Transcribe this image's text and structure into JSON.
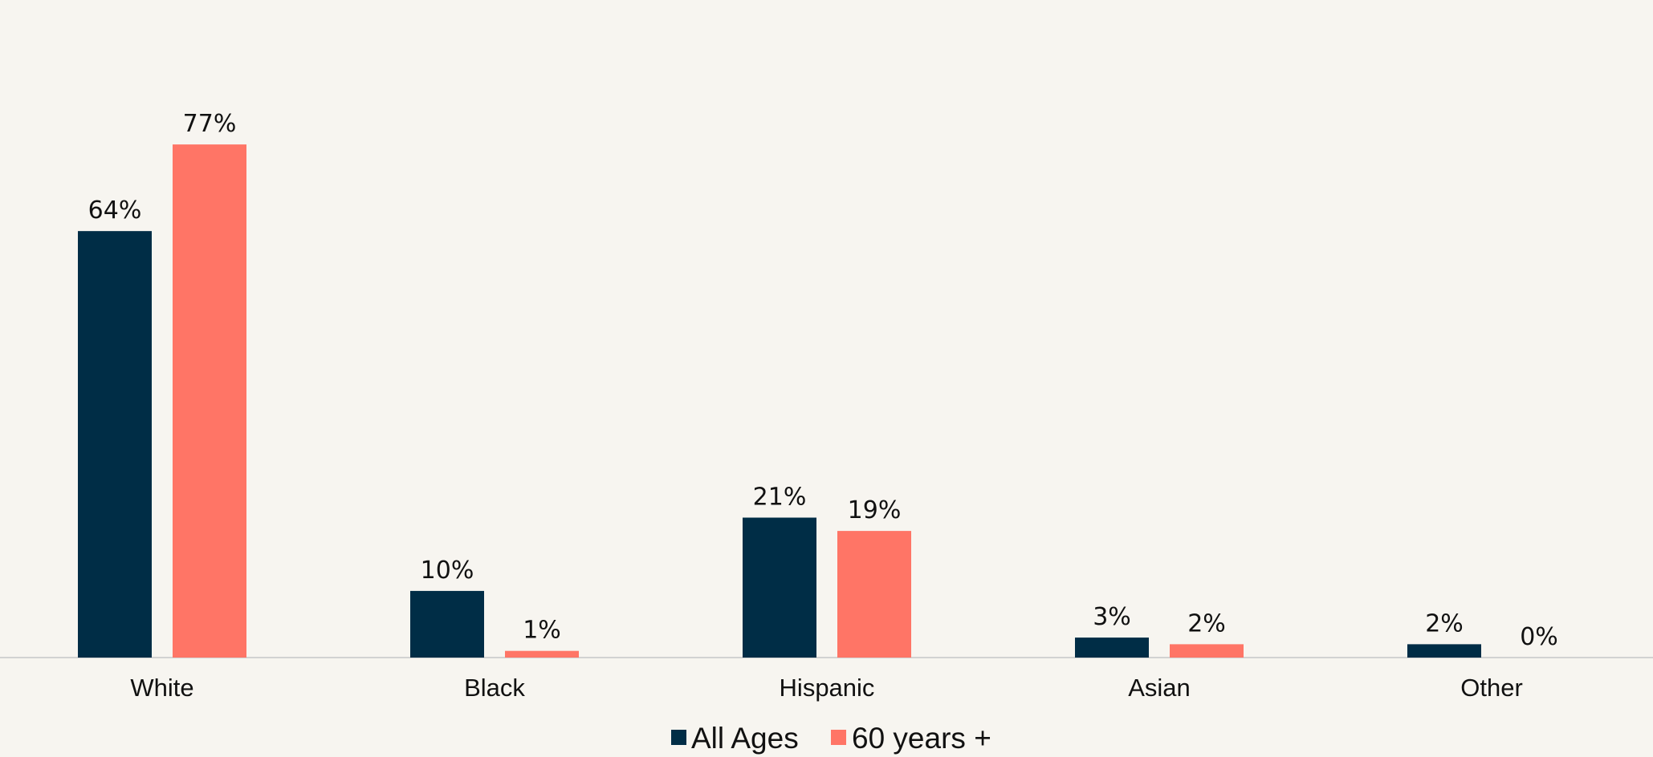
{
  "chart_data": {
    "type": "bar",
    "categories": [
      "White",
      "Black",
      "Hispanic",
      "Asian",
      "Other"
    ],
    "series": [
      {
        "name": "All Ages",
        "color": "#002D46",
        "values": [
          64,
          10,
          21,
          3,
          2
        ],
        "labels": [
          "64%",
          "10%",
          "21%",
          "3%",
          "2%"
        ]
      },
      {
        "name": "60 years +",
        "color": "#FF7566",
        "values": [
          77,
          1,
          19,
          2,
          0
        ],
        "labels": [
          "77%",
          "1%",
          "19%",
          "2%",
          "0%"
        ]
      }
    ],
    "title": "",
    "xlabel": "",
    "ylabel": "",
    "ylim": [
      0,
      80
    ],
    "grid": false,
    "legend_position": "bottom"
  }
}
